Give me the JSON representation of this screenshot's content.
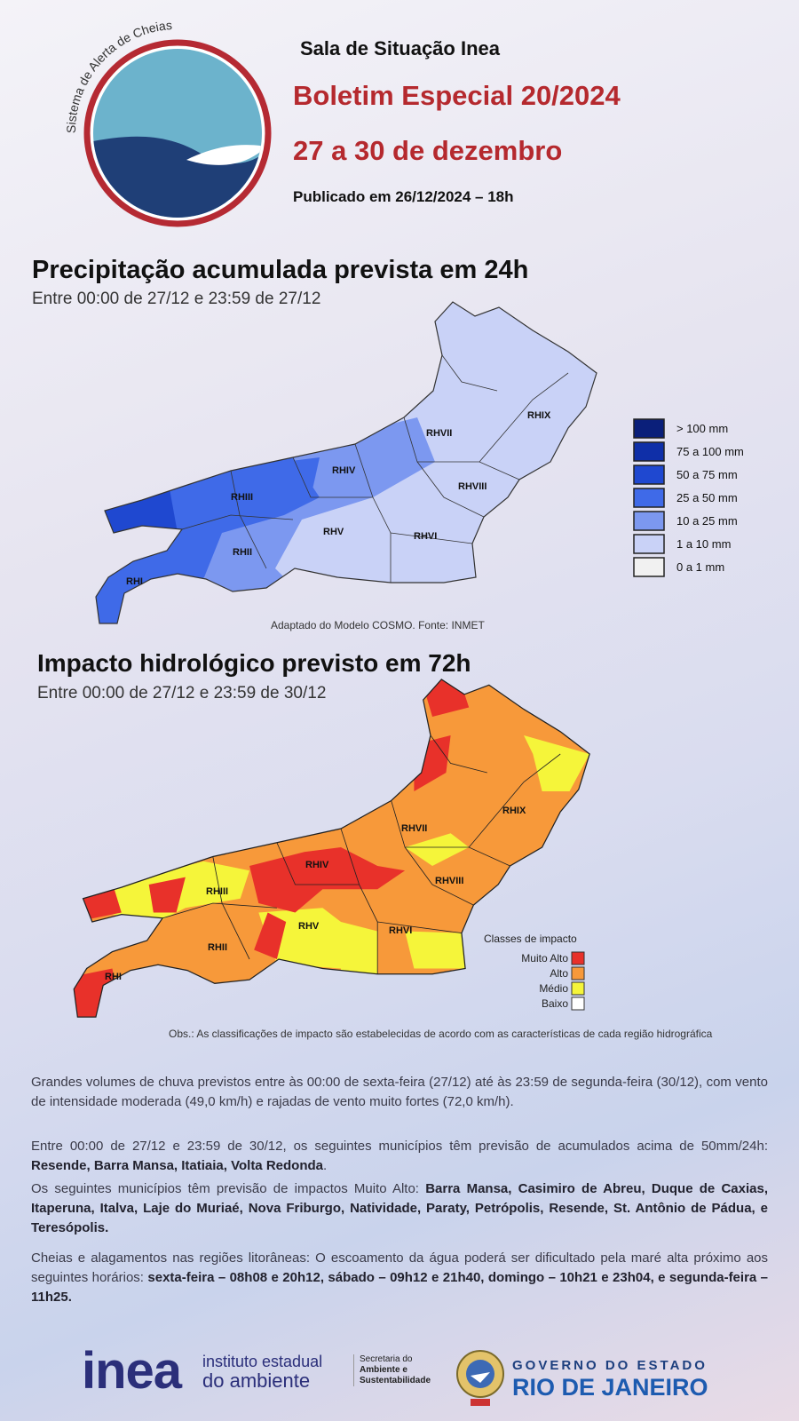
{
  "header": {
    "logo_text": "Sistema de Alerta de Cheias",
    "org": "Sala de Situação Inea",
    "title": "Boletim Especial 20/2024",
    "dates": "27 a 30 de dezembro",
    "published": "Publicado em 26/12/2024 – 18h"
  },
  "map1": {
    "title": "Precipitação acumulada prevista em 24h",
    "subtitle": "Entre 00:00 de 27/12 e 23:59 de 27/12",
    "regions": [
      "RHI",
      "RHII",
      "RHIII",
      "RHIV",
      "RHV",
      "RHVI",
      "RHVII",
      "RHVIII",
      "RHIX"
    ],
    "legend": [
      {
        "label": "> 100 mm",
        "color": "#0a1f7a"
      },
      {
        "label": "75 a 100 mm",
        "color": "#0f2fa8"
      },
      {
        "label": "50 a 75 mm",
        "color": "#1f48d0"
      },
      {
        "label": "25 a 50 mm",
        "color": "#3f6ae8"
      },
      {
        "label": "10 a 25 mm",
        "color": "#7c98f0"
      },
      {
        "label": "1 a 10 mm",
        "color": "#c9d2f7"
      },
      {
        "label": "0 a 1 mm",
        "color": "#f1f1f1"
      }
    ],
    "source": "Adaptado  do Modelo COSMO. Fonte: INMET"
  },
  "map2": {
    "title": "Impacto hidrológico previsto em 72h",
    "subtitle": "Entre 00:00 de 27/12 e 23:59 de 30/12",
    "regions": [
      "RHI",
      "RHII",
      "RHIII",
      "RHIV",
      "RHV",
      "RHVI",
      "RHVII",
      "RHVIII",
      "RHIX"
    ],
    "legend_title": "Classes de impacto",
    "legend": [
      {
        "label": "Muito Alto",
        "color": "#e8312a"
      },
      {
        "label": "Alto",
        "color": "#f7993a"
      },
      {
        "label": "Médio",
        "color": "#f5f53a"
      },
      {
        "label": "Baixo",
        "color": "#ffffff"
      }
    ],
    "note": "Obs.: As classificações de impacto são estabelecidas de acordo com as características de cada região hidrográfica"
  },
  "paragraphs": [
    [
      {
        "text": "Grandes volumes de chuva previstos entre às 00:00 de sexta-feira (27/12) até às 23:59 de segunda-feira (30/12), com vento de intensidade moderada (49,0 km/h) e rajadas de vento muito fortes (72,0 km/h)."
      }
    ],
    [
      {
        "text": "Entre 00:00 de 27/12 e 23:59 de 30/12, os seguintes municípios têm previsão de acumulados acima de 50mm/24h: "
      },
      {
        "text": "Resende, Barra Mansa, Itatiaia, Volta Redonda",
        "bold": true
      },
      {
        "text": "."
      }
    ],
    [
      {
        "text": "Os seguintes municípios têm previsão de impactos Muito Alto: "
      },
      {
        "text": "Barra Mansa, Casimiro de Abreu, Duque de Caxias, Itaperuna, Italva, Laje do Muriaé, Nova Friburgo, Natividade, Paraty, Petrópolis, Resende, St. Antônio de Pádua, e Teresópolis.",
        "bold": true
      }
    ],
    [
      {
        "text": "Cheias e alagamentos nas regiões litorâneas: O escoamento da água poderá ser dificultado pela maré alta próximo aos seguintes horários: "
      },
      {
        "text": "sexta-feira – 08h08 e 20h12, sábado – 09h12 e 21h40, domingo – 10h21 e 23h04, e segunda-feira – 11h25.",
        "bold": true
      }
    ]
  ],
  "footer": {
    "inea": "inea",
    "inea_line1": "instituto estadual",
    "inea_line2": "do ambiente",
    "secretaria": [
      "Secretaria do",
      "Ambiente e",
      "Sustentabilidade"
    ],
    "gov_line1": "GOVERNO DO ESTADO",
    "gov_line2": "RIO DE JANEIRO"
  }
}
